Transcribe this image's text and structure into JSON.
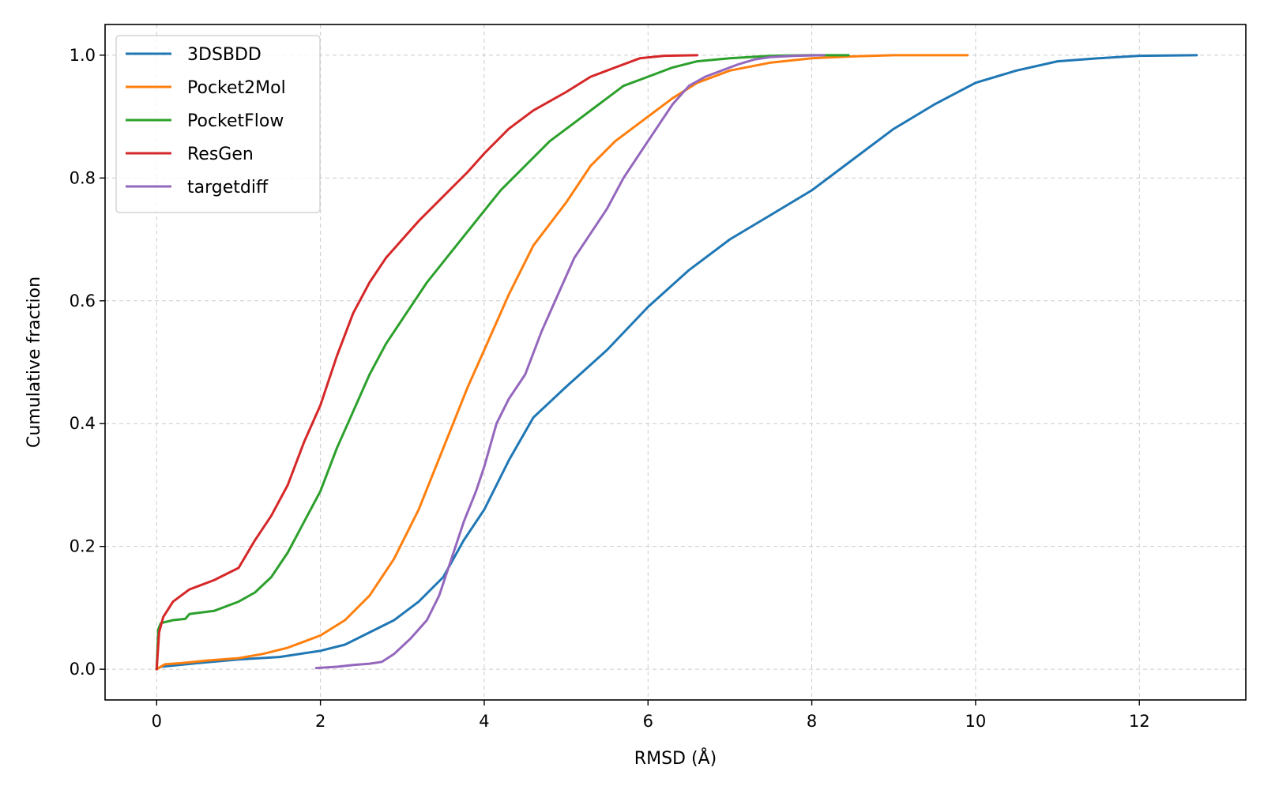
{
  "chart_data": {
    "type": "line",
    "title": "",
    "xlabel": "RMSD (Å)",
    "ylabel": "Cumulative fraction",
    "xlim": [
      -0.63,
      13.3
    ],
    "ylim": [
      -0.05,
      1.05
    ],
    "xticks": [
      0,
      2,
      4,
      6,
      8,
      10,
      12
    ],
    "yticks": [
      0.0,
      0.2,
      0.4,
      0.6,
      0.8,
      1.0
    ],
    "grid": true,
    "legend_position": "top-left",
    "series": [
      {
        "name": "3DSBDD",
        "color": "#1f77b4",
        "x": [
          0,
          0.05,
          0.2,
          0.5,
          1.0,
          1.5,
          2.0,
          2.3,
          2.6,
          2.9,
          3.2,
          3.5,
          3.75,
          4.0,
          4.3,
          4.6,
          5.0,
          5.5,
          6.0,
          6.5,
          7.0,
          7.5,
          8.0,
          8.5,
          9.0,
          9.5,
          10.0,
          10.5,
          11.0,
          11.5,
          12.0,
          12.7
        ],
        "y": [
          0,
          0.004,
          0.006,
          0.01,
          0.016,
          0.02,
          0.03,
          0.04,
          0.06,
          0.08,
          0.11,
          0.15,
          0.21,
          0.26,
          0.34,
          0.41,
          0.46,
          0.52,
          0.59,
          0.65,
          0.7,
          0.74,
          0.78,
          0.83,
          0.88,
          0.92,
          0.955,
          0.975,
          0.99,
          0.995,
          0.999,
          1.0
        ]
      },
      {
        "name": "Pocket2Mol",
        "color": "#ff7f0e",
        "x": [
          0,
          0.1,
          0.3,
          0.6,
          1.0,
          1.3,
          1.6,
          2.0,
          2.3,
          2.6,
          2.9,
          3.2,
          3.5,
          3.8,
          4.0,
          4.3,
          4.6,
          5.0,
          5.3,
          5.6,
          6.0,
          6.3,
          6.6,
          7.0,
          7.5,
          8.0,
          8.5,
          9.0,
          9.5,
          9.9
        ],
        "y": [
          0,
          0.008,
          0.01,
          0.014,
          0.018,
          0.025,
          0.035,
          0.055,
          0.08,
          0.12,
          0.18,
          0.26,
          0.36,
          0.46,
          0.52,
          0.61,
          0.69,
          0.76,
          0.82,
          0.86,
          0.9,
          0.93,
          0.955,
          0.975,
          0.988,
          0.995,
          0.998,
          1.0,
          1.0,
          1.0
        ]
      },
      {
        "name": "PocketFlow",
        "color": "#2ca02c",
        "x": [
          0,
          0.02,
          0.05,
          0.2,
          0.35,
          0.4,
          0.7,
          0.9,
          1.0,
          1.2,
          1.4,
          1.6,
          1.8,
          2.0,
          2.2,
          2.4,
          2.6,
          2.8,
          3.0,
          3.3,
          3.6,
          3.9,
          4.2,
          4.5,
          4.8,
          5.1,
          5.4,
          5.7,
          6.0,
          6.3,
          6.6,
          7.0,
          7.5,
          8.0,
          8.45
        ],
        "y": [
          0,
          0.065,
          0.075,
          0.08,
          0.082,
          0.09,
          0.095,
          0.105,
          0.11,
          0.125,
          0.15,
          0.19,
          0.24,
          0.29,
          0.36,
          0.42,
          0.48,
          0.53,
          0.57,
          0.63,
          0.68,
          0.73,
          0.78,
          0.82,
          0.86,
          0.89,
          0.92,
          0.95,
          0.965,
          0.98,
          0.99,
          0.995,
          0.999,
          1.0,
          1.0
        ]
      },
      {
        "name": "ResGen",
        "color": "#d62728",
        "x": [
          0,
          0.03,
          0.08,
          0.2,
          0.4,
          0.7,
          1.0,
          1.2,
          1.4,
          1.6,
          1.8,
          2.0,
          2.2,
          2.4,
          2.6,
          2.8,
          3.0,
          3.2,
          3.5,
          3.8,
          4.0,
          4.3,
          4.6,
          5.0,
          5.3,
          5.6,
          5.9,
          6.2,
          6.6
        ],
        "y": [
          0,
          0.06,
          0.085,
          0.11,
          0.13,
          0.145,
          0.165,
          0.21,
          0.25,
          0.3,
          0.37,
          0.43,
          0.51,
          0.58,
          0.63,
          0.67,
          0.7,
          0.73,
          0.77,
          0.81,
          0.84,
          0.88,
          0.91,
          0.94,
          0.965,
          0.98,
          0.995,
          0.999,
          1.0
        ]
      },
      {
        "name": "targetdiff",
        "color": "#9467bd",
        "x": [
          1.95,
          2.2,
          2.4,
          2.6,
          2.75,
          2.9,
          3.1,
          3.3,
          3.45,
          3.6,
          3.75,
          3.9,
          4.0,
          4.15,
          4.3,
          4.5,
          4.7,
          4.9,
          5.1,
          5.3,
          5.5,
          5.7,
          5.9,
          6.1,
          6.3,
          6.5,
          6.7,
          6.9,
          7.1,
          7.3,
          7.5,
          7.8,
          8.15
        ],
        "y": [
          0.002,
          0.004,
          0.007,
          0.009,
          0.012,
          0.025,
          0.05,
          0.08,
          0.12,
          0.18,
          0.24,
          0.29,
          0.33,
          0.4,
          0.44,
          0.48,
          0.55,
          0.61,
          0.67,
          0.71,
          0.75,
          0.8,
          0.84,
          0.88,
          0.92,
          0.95,
          0.965,
          0.975,
          0.985,
          0.993,
          0.997,
          0.999,
          1.0
        ]
      }
    ]
  }
}
